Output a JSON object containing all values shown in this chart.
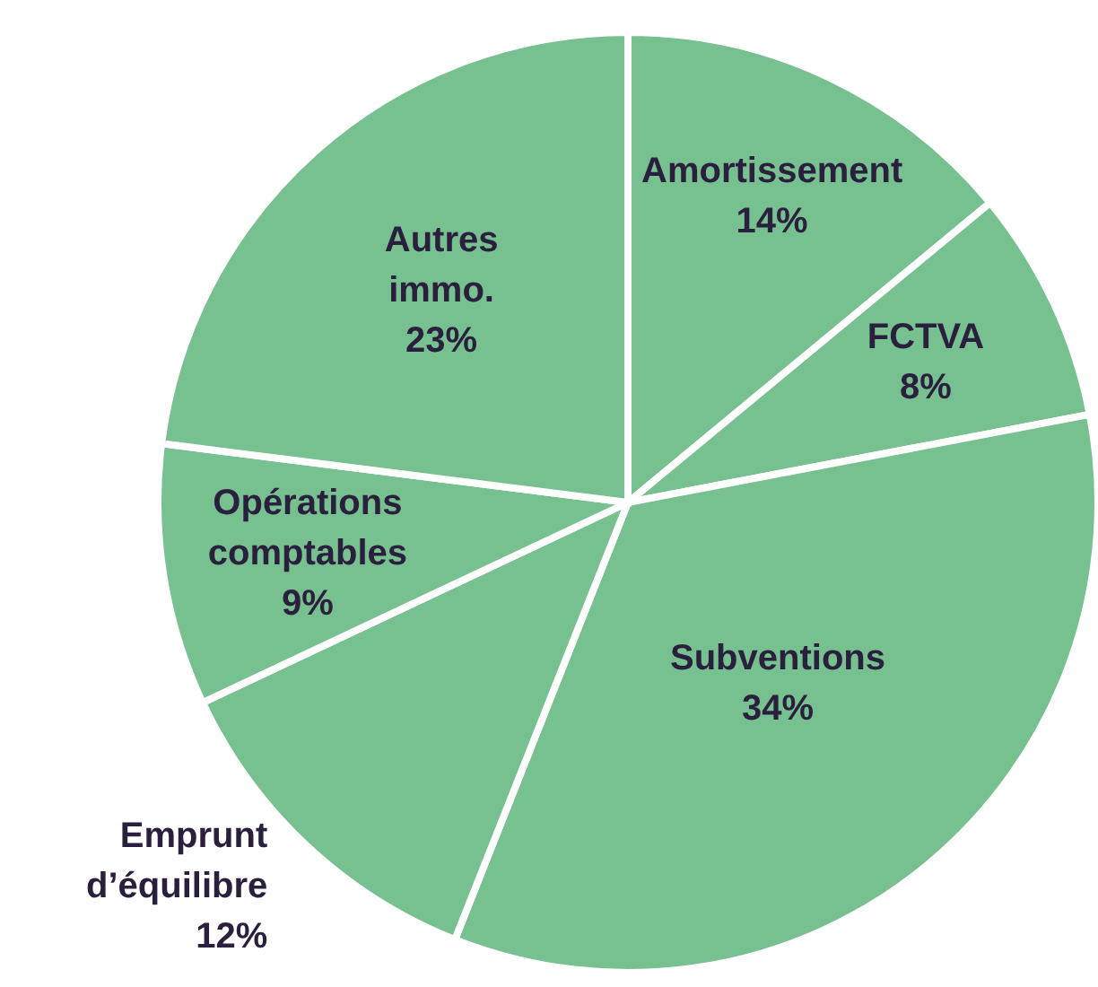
{
  "chart_data": {
    "type": "pie",
    "categories": [
      "Amortissement",
      "FCTVA",
      "Subventions",
      "Emprunt d’équilibre",
      "Opérations comptables",
      "Autres immo."
    ],
    "values": [
      14,
      8,
      34,
      12,
      9,
      23
    ],
    "value_labels": [
      "14%",
      "8%",
      "34%",
      "12%",
      "9%",
      "23%"
    ],
    "colors": [
      "#77c08f",
      "#77c08f",
      "#77c08f",
      "#77c08f",
      "#77c08f",
      "#77c08f"
    ]
  }
}
